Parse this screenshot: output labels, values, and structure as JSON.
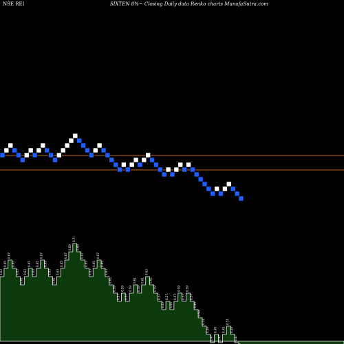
{
  "header": {
    "left": "NSE REI",
    "right": "SIXTEN  8%~  Closing Daily data  Renko  charts MunafaSutra.com"
  },
  "colors": {
    "background": "#000000",
    "up_brick": "#ffffff",
    "down_brick": "#1f5fff",
    "line": "#c0651f",
    "volume_fill": "#0c3a0c",
    "volume_edge": "#f0f0f0",
    "volume_text": "#ffffff"
  },
  "chart_data": {
    "type": "renko",
    "horizontal_lines": [
      0.63,
      0.57
    ],
    "bricks": [
      {
        "dir": "down",
        "value": 0.63
      },
      {
        "dir": "up",
        "value": 0.65
      },
      {
        "dir": "up",
        "value": 0.67
      },
      {
        "dir": "down",
        "value": 0.65
      },
      {
        "dir": "down",
        "value": 0.63
      },
      {
        "dir": "down",
        "value": 0.61
      },
      {
        "dir": "up",
        "value": 0.63
      },
      {
        "dir": "up",
        "value": 0.65
      },
      {
        "dir": "down",
        "value": 0.63
      },
      {
        "dir": "up",
        "value": 0.65
      },
      {
        "dir": "up",
        "value": 0.67
      },
      {
        "dir": "down",
        "value": 0.65
      },
      {
        "dir": "down",
        "value": 0.63
      },
      {
        "dir": "down",
        "value": 0.61
      },
      {
        "dir": "up",
        "value": 0.63
      },
      {
        "dir": "up",
        "value": 0.65
      },
      {
        "dir": "up",
        "value": 0.67
      },
      {
        "dir": "up",
        "value": 0.69
      },
      {
        "dir": "up",
        "value": 0.71
      },
      {
        "dir": "down",
        "value": 0.69
      },
      {
        "dir": "down",
        "value": 0.67
      },
      {
        "dir": "down",
        "value": 0.65
      },
      {
        "dir": "down",
        "value": 0.63
      },
      {
        "dir": "up",
        "value": 0.65
      },
      {
        "dir": "up",
        "value": 0.67
      },
      {
        "dir": "down",
        "value": 0.65
      },
      {
        "dir": "down",
        "value": 0.63
      },
      {
        "dir": "down",
        "value": 0.61
      },
      {
        "dir": "down",
        "value": 0.59
      },
      {
        "dir": "down",
        "value": 0.57
      },
      {
        "dir": "up",
        "value": 0.59
      },
      {
        "dir": "down",
        "value": 0.57
      },
      {
        "dir": "up",
        "value": 0.59
      },
      {
        "dir": "up",
        "value": 0.61
      },
      {
        "dir": "down",
        "value": 0.59
      },
      {
        "dir": "up",
        "value": 0.61
      },
      {
        "dir": "up",
        "value": 0.63
      },
      {
        "dir": "down",
        "value": 0.61
      },
      {
        "dir": "down",
        "value": 0.59
      },
      {
        "dir": "down",
        "value": 0.57
      },
      {
        "dir": "down",
        "value": 0.55
      },
      {
        "dir": "up",
        "value": 0.57
      },
      {
        "dir": "down",
        "value": 0.55
      },
      {
        "dir": "up",
        "value": 0.57
      },
      {
        "dir": "up",
        "value": 0.59
      },
      {
        "dir": "down",
        "value": 0.57
      },
      {
        "dir": "up",
        "value": 0.59
      },
      {
        "dir": "down",
        "value": 0.57
      },
      {
        "dir": "down",
        "value": 0.55
      },
      {
        "dir": "down",
        "value": 0.53
      },
      {
        "dir": "down",
        "value": 0.51
      },
      {
        "dir": "down",
        "value": 0.49
      },
      {
        "dir": "down",
        "value": 0.47
      },
      {
        "dir": "up",
        "value": 0.49
      },
      {
        "dir": "down",
        "value": 0.47
      },
      {
        "dir": "up",
        "value": 0.49
      },
      {
        "dir": "up",
        "value": 0.51
      },
      {
        "dir": "down",
        "value": 0.49
      },
      {
        "dir": "down",
        "value": 0.47
      },
      {
        "dir": "down",
        "value": 0.45
      }
    ]
  }
}
